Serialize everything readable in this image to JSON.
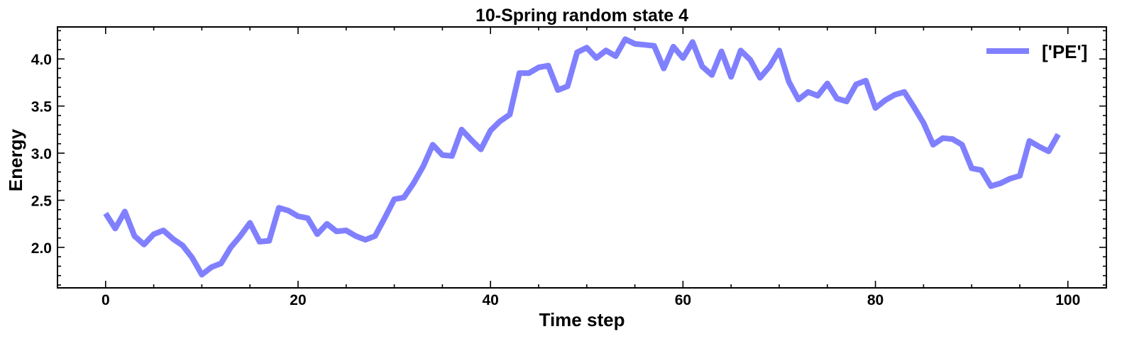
{
  "chart_data": {
    "type": "line",
    "title": "10-Spring random state 4",
    "xlabel": "Time step",
    "ylabel": "Energy",
    "xlim": [
      -5,
      104
    ],
    "ylim": [
      1.57,
      4.34
    ],
    "xticks": [
      0,
      20,
      40,
      60,
      80,
      100
    ],
    "xtick_labels": [
      "0",
      "20",
      "40",
      "60",
      "80",
      "100"
    ],
    "yticks": [
      2.0,
      2.5,
      3.0,
      3.5,
      4.0
    ],
    "ytick_labels": [
      "2.0",
      "2.5",
      "3.0",
      "3.5",
      "4.0"
    ],
    "xminor": [
      5,
      10,
      15,
      25,
      30,
      35,
      45,
      50,
      55,
      65,
      70,
      75,
      85,
      90,
      95
    ],
    "yminor": [
      1.6,
      1.7,
      1.8,
      1.9,
      2.1,
      2.2,
      2.3,
      2.4,
      2.6,
      2.7,
      2.8,
      2.9,
      3.1,
      3.2,
      3.3,
      3.4,
      3.6,
      3.7,
      3.8,
      3.9,
      4.1,
      4.2,
      4.3
    ],
    "grid": false,
    "legend_position": "top-right",
    "series": [
      {
        "name": "['PE']",
        "color": "#8080ff",
        "x": [
          0,
          1,
          2,
          3,
          4,
          5,
          6,
          7,
          8,
          9,
          10,
          11,
          12,
          13,
          14,
          15,
          16,
          17,
          18,
          19,
          20,
          21,
          22,
          23,
          24,
          25,
          26,
          27,
          28,
          29,
          30,
          31,
          32,
          33,
          34,
          35,
          36,
          37,
          38,
          39,
          40,
          41,
          42,
          43,
          44,
          45,
          46,
          47,
          48,
          49,
          50,
          51,
          52,
          53,
          54,
          55,
          56,
          57,
          58,
          59,
          60,
          61,
          62,
          63,
          64,
          65,
          66,
          67,
          68,
          69,
          70,
          71,
          72,
          73,
          74,
          75,
          76,
          77,
          78,
          79,
          80,
          81,
          82,
          83,
          84,
          85,
          86,
          87,
          88,
          89,
          90,
          91,
          92,
          93,
          94,
          95,
          96,
          97,
          98,
          99
        ],
        "values": [
          2.36,
          2.2,
          2.38,
          2.12,
          2.03,
          2.14,
          2.18,
          2.09,
          2.02,
          1.89,
          1.71,
          1.79,
          1.83,
          2.0,
          2.12,
          2.26,
          2.06,
          2.07,
          2.42,
          2.39,
          2.33,
          2.31,
          2.14,
          2.25,
          2.17,
          2.18,
          2.12,
          2.08,
          2.12,
          2.31,
          2.51,
          2.53,
          2.68,
          2.86,
          3.09,
          2.98,
          2.97,
          3.25,
          3.14,
          3.04,
          3.24,
          3.34,
          3.41,
          3.85,
          3.85,
          3.91,
          3.93,
          3.67,
          3.71,
          4.07,
          4.12,
          4.01,
          4.09,
          4.03,
          4.21,
          4.16,
          4.15,
          4.14,
          3.9,
          4.13,
          4.01,
          4.18,
          3.92,
          3.83,
          4.08,
          3.81,
          4.09,
          3.99,
          3.8,
          3.92,
          4.09,
          3.76,
          3.57,
          3.65,
          3.61,
          3.74,
          3.58,
          3.55,
          3.73,
          3.77,
          3.48,
          3.56,
          3.62,
          3.65,
          3.49,
          3.32,
          3.09,
          3.16,
          3.15,
          3.09,
          2.84,
          2.82,
          2.65,
          2.68,
          2.73,
          2.76,
          3.13,
          3.07,
          3.02,
          3.2
        ]
      }
    ]
  }
}
